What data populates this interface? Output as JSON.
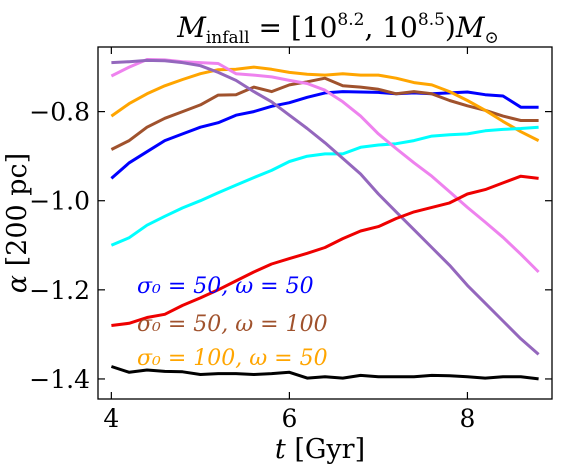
{
  "chart_data": {
    "type": "line",
    "title": "M_infall = [10^8.2, 10^8.5) M_⊙",
    "title_parts": {
      "var": "M",
      "sub": "infall",
      "eq": " = [10",
      "exp1": "8.2",
      "mid": ", 10",
      "exp2": "8.5",
      "close": ")",
      "var2": "M",
      "sun": "⊙"
    },
    "xlabel": "t [Gyr]",
    "xlabel_parts": {
      "var": "t",
      "rest": " [Gyr]"
    },
    "ylabel": "α [200 pc]",
    "ylabel_parts": {
      "var": "α",
      "rest": " [200 pc]"
    },
    "xlim": [
      3.85,
      8.95
    ],
    "ylim": [
      -1.445,
      -0.655
    ],
    "xticks": [
      4,
      6,
      8
    ],
    "xtick_labels": [
      "4",
      "6",
      "8"
    ],
    "yticks": [
      -0.8,
      -1.0,
      -1.2,
      -1.4
    ],
    "ytick_labels": [
      "−0.8",
      "−1.0",
      "−1.2",
      "−1.4"
    ],
    "grid": false,
    "legend_texts": [
      {
        "text": "σ₀ = 50, ω = 50",
        "color": "#0000ff"
      },
      {
        "text": "σ₀ = 50, ω = 100",
        "color": "#a0522d"
      },
      {
        "text": "σ₀ = 100, ω = 50",
        "color": "#ffa500"
      }
    ],
    "x": [
      4.0,
      4.2,
      4.4,
      4.6,
      4.8,
      5.0,
      5.2,
      5.4,
      5.6,
      5.8,
      6.0,
      6.2,
      6.4,
      6.6,
      6.8,
      7.0,
      7.2,
      7.4,
      7.6,
      7.8,
      8.0,
      8.2,
      8.4,
      8.6,
      8.8
    ],
    "series": [
      {
        "color": "#0000ff",
        "values": [
          -0.95,
          -0.915,
          -0.89,
          -0.865,
          -0.85,
          -0.835,
          -0.825,
          -0.808,
          -0.8,
          -0.788,
          -0.78,
          -0.768,
          -0.758,
          -0.755,
          -0.756,
          -0.757,
          -0.76,
          -0.758,
          -0.76,
          -0.758,
          -0.756,
          -0.762,
          -0.765,
          -0.79,
          -0.79
        ]
      },
      {
        "color": "#a0522d",
        "values": [
          -0.885,
          -0.865,
          -0.835,
          -0.815,
          -0.8,
          -0.785,
          -0.763,
          -0.762,
          -0.745,
          -0.755,
          -0.74,
          -0.733,
          -0.725,
          -0.742,
          -0.745,
          -0.75,
          -0.76,
          -0.755,
          -0.76,
          -0.775,
          -0.787,
          -0.797,
          -0.81,
          -0.82,
          -0.82
        ]
      },
      {
        "color": "#ffa500",
        "values": [
          -0.81,
          -0.782,
          -0.76,
          -0.742,
          -0.728,
          -0.715,
          -0.706,
          -0.705,
          -0.7,
          -0.705,
          -0.712,
          -0.716,
          -0.718,
          -0.715,
          -0.718,
          -0.718,
          -0.725,
          -0.735,
          -0.74,
          -0.755,
          -0.775,
          -0.797,
          -0.822,
          -0.845,
          -0.865
        ]
      },
      {
        "color": "#00ffff",
        "values": [
          -1.1,
          -1.083,
          -1.055,
          -1.035,
          -1.016,
          -1.0,
          -0.982,
          -0.965,
          -0.948,
          -0.932,
          -0.912,
          -0.9,
          -0.895,
          -0.895,
          -0.88,
          -0.875,
          -0.872,
          -0.865,
          -0.855,
          -0.852,
          -0.85,
          -0.843,
          -0.84,
          -0.838,
          -0.835
        ]
      },
      {
        "color": "#ee82ee",
        "values": [
          -0.72,
          -0.7,
          -0.683,
          -0.684,
          -0.688,
          -0.69,
          -0.692,
          -0.715,
          -0.718,
          -0.722,
          -0.73,
          -0.737,
          -0.752,
          -0.778,
          -0.81,
          -0.85,
          -0.883,
          -0.915,
          -0.945,
          -0.98,
          -1.015,
          -1.048,
          -1.082,
          -1.12,
          -1.16
        ]
      },
      {
        "color": "#9467bd",
        "values": [
          -0.69,
          -0.688,
          -0.685,
          -0.686,
          -0.69,
          -0.697,
          -0.712,
          -0.73,
          -0.755,
          -0.778,
          -0.808,
          -0.838,
          -0.87,
          -0.905,
          -0.94,
          -0.985,
          -1.025,
          -1.065,
          -1.105,
          -1.145,
          -1.19,
          -1.23,
          -1.27,
          -1.31,
          -1.345
        ]
      },
      {
        "color": "#ee0000",
        "values": [
          -1.28,
          -1.275,
          -1.262,
          -1.255,
          -1.235,
          -1.218,
          -1.2,
          -1.18,
          -1.16,
          -1.142,
          -1.13,
          -1.118,
          -1.105,
          -1.085,
          -1.068,
          -1.058,
          -1.04,
          -1.025,
          -1.015,
          -1.005,
          -0.985,
          -0.975,
          -0.96,
          -0.945,
          -0.95
        ]
      },
      {
        "color": "#000000",
        "values": [
          -1.372,
          -1.385,
          -1.38,
          -1.383,
          -1.384,
          -1.39,
          -1.388,
          -1.388,
          -1.39,
          -1.388,
          -1.385,
          -1.398,
          -1.395,
          -1.398,
          -1.392,
          -1.395,
          -1.395,
          -1.395,
          -1.392,
          -1.393,
          -1.395,
          -1.398,
          -1.395,
          -1.395,
          -1.4
        ]
      }
    ]
  }
}
